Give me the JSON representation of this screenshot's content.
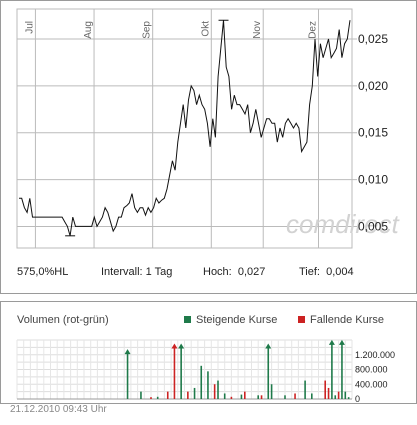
{
  "brand": "comdirect",
  "stats": {
    "range": "575,0%HL",
    "interval": "Intervall: 1 Tag",
    "high_label": "Hoch:",
    "high_value": "0,027",
    "low_label": "Tief:",
    "low_value": "0,004"
  },
  "volume_panel": {
    "title": "Volumen (rot-grün)",
    "legend_rising": "Steigende Kurse",
    "legend_falling": "Fallende Kurse"
  },
  "timestamp": "21.12.2010 09:43 Uhr",
  "colors": {
    "rising": "#1f7a4a",
    "falling": "#cc2222",
    "line": "#111111",
    "grid": "#bbbbbb"
  },
  "chart_data": [
    {
      "type": "line",
      "x_ticks": [
        "Jul",
        "Aug",
        "Sep",
        "Okt",
        "Nov",
        "Dez"
      ],
      "y_ticks": [
        "0,005",
        "0,010",
        "0,015",
        "0,020",
        "0,025"
      ],
      "ylim": [
        0.0027,
        0.0282
      ],
      "y": [
        0.008,
        0.008,
        0.007,
        0.0065,
        0.008,
        0.006,
        0.006,
        0.006,
        0.006,
        0.006,
        0.006,
        0.006,
        0.006,
        0.006,
        0.006,
        0.006,
        0.006,
        0.0055,
        0.005,
        0.004,
        0.006,
        0.005,
        0.005,
        0.005,
        0.005,
        0.005,
        0.005,
        0.005,
        0.006,
        0.005,
        0.0055,
        0.006,
        0.007,
        0.0065,
        0.0055,
        0.0045,
        0.005,
        0.006,
        0.006,
        0.007,
        0.0072,
        0.0075,
        0.0085,
        0.007,
        0.0065,
        0.007,
        0.007,
        0.0062,
        0.007,
        0.0065,
        0.007,
        0.008,
        0.0075,
        0.0078,
        0.008,
        0.009,
        0.0105,
        0.012,
        0.011,
        0.014,
        0.016,
        0.018,
        0.0155,
        0.0185,
        0.02,
        0.0195,
        0.018,
        0.019,
        0.018,
        0.0175,
        0.016,
        0.0135,
        0.0165,
        0.0145,
        0.021,
        0.024,
        0.027,
        0.022,
        0.021,
        0.0175,
        0.019,
        0.018,
        0.018,
        0.0175,
        0.017,
        0.018,
        0.015,
        0.016,
        0.0175,
        0.016,
        0.0145,
        0.0155,
        0.0165,
        0.0165,
        0.016,
        0.016,
        0.014,
        0.0155,
        0.0145,
        0.016,
        0.0165,
        0.016,
        0.0155,
        0.016,
        0.0155,
        0.013,
        0.0135,
        0.014,
        0.018,
        0.02,
        0.025,
        0.021,
        0.0245,
        0.023,
        0.024,
        0.025,
        0.023,
        0.0235,
        0.024,
        0.026,
        0.023,
        0.0245,
        0.025,
        0.027
      ]
    },
    {
      "type": "bar",
      "y_ticks": [
        "0",
        "400.000",
        "800.000",
        "1.200.000"
      ],
      "ylim": [
        0,
        1600000
      ],
      "series": [
        {
          "name": "Steigende Kurse",
          "bars": [
            [
              0.33,
              1300000
            ],
            [
              0.37,
              200000
            ],
            [
              0.42,
              60000
            ],
            [
              0.49,
              1450000
            ],
            [
              0.53,
              300000
            ],
            [
              0.55,
              900000
            ],
            [
              0.57,
              750000
            ],
            [
              0.6,
              500000
            ],
            [
              0.62,
              150000
            ],
            [
              0.67,
              120000
            ],
            [
              0.72,
              100000
            ],
            [
              0.75,
              1450000
            ],
            [
              0.76,
              400000
            ],
            [
              0.8,
              100000
            ],
            [
              0.86,
              500000
            ],
            [
              0.88,
              150000
            ],
            [
              0.94,
              1550000
            ],
            [
              0.95,
              100000
            ],
            [
              0.97,
              1550000
            ],
            [
              0.98,
              200000
            ],
            [
              0.99,
              50000
            ]
          ]
        },
        {
          "name": "Fallende Kurse",
          "bars": [
            [
              0.4,
              50000
            ],
            [
              0.45,
              200000
            ],
            [
              0.47,
              1450000
            ],
            [
              0.51,
              200000
            ],
            [
              0.59,
              400000
            ],
            [
              0.64,
              60000
            ],
            [
              0.68,
              200000
            ],
            [
              0.73,
              100000
            ],
            [
              0.83,
              150000
            ],
            [
              0.92,
              500000
            ],
            [
              0.93,
              300000
            ],
            [
              0.96,
              200000
            ]
          ]
        }
      ]
    }
  ]
}
